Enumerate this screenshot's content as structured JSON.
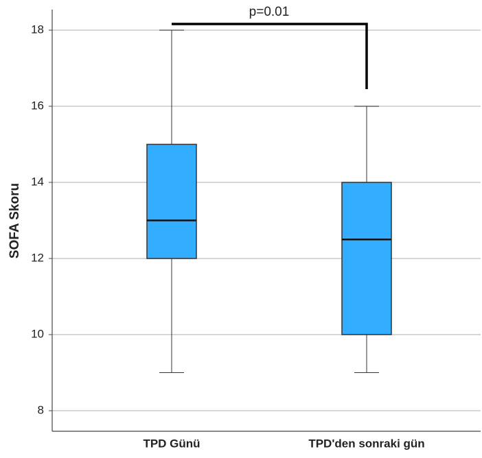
{
  "chart_data": {
    "type": "box",
    "y_label": "SOFA Skoru",
    "categories": [
      "TPD Günü",
      "TPD'den sonraki gün"
    ],
    "boxes": [
      {
        "min": 9,
        "q1": 12,
        "median": 13,
        "q3": 15,
        "max": 18
      },
      {
        "min": 9,
        "q1": 10,
        "median": 12.5,
        "q3": 14,
        "max": 16
      }
    ],
    "color": "#33adff",
    "ylim": [
      7.46,
      18.54
    ],
    "yticks": [
      8,
      10,
      12,
      14,
      16,
      18
    ],
    "grid": true,
    "annotation": "p=0.01"
  }
}
